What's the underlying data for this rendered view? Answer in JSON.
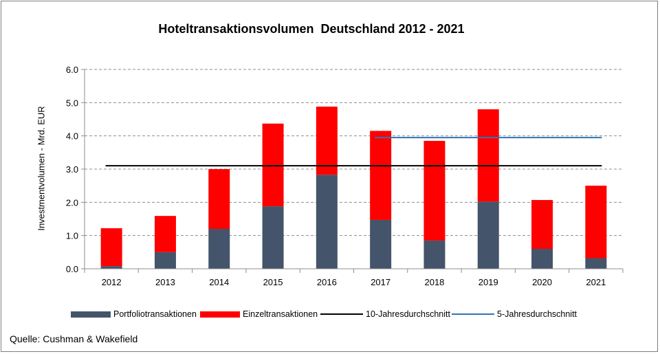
{
  "chart_data": {
    "type": "bar",
    "stacked": true,
    "title": "Hoteltransaktionsvolumen  Deutschland 2012 - 2021",
    "xlabel": "",
    "ylabel": "Investmentvolumen - Mrd. EUR",
    "ylim": [
      0,
      6
    ],
    "ytick_labels": [
      "0.0",
      "1.0",
      "2.0",
      "3.0",
      "4.0",
      "5.0",
      "6.0"
    ],
    "categories": [
      "2012",
      "2013",
      "2014",
      "2015",
      "2016",
      "2017",
      "2018",
      "2019",
      "2020",
      "2021"
    ],
    "series": [
      {
        "name": "Portfoliotransaktionen",
        "color": "#44546a",
        "values": [
          0.08,
          0.5,
          1.2,
          1.88,
          2.83,
          1.47,
          0.85,
          2.02,
          0.6,
          0.32
        ]
      },
      {
        "name": "Einzeltransaktionen",
        "color": "#ff0000",
        "values": [
          1.14,
          1.09,
          1.8,
          2.49,
          2.05,
          2.68,
          3.0,
          2.78,
          1.47,
          2.18
        ]
      }
    ],
    "lines": [
      {
        "name": "10-Jahresdurchschnitt",
        "color": "#000000",
        "value": 3.1,
        "from": "2012",
        "to": "2021"
      },
      {
        "name": "5-Jahresdurchschnitt",
        "color": "#2e75b6",
        "value": 3.95,
        "from": "2017",
        "to": "2021"
      }
    ],
    "grid": true,
    "legend_position": "bottom"
  },
  "source": "Quelle: Cushman & Wakefield"
}
